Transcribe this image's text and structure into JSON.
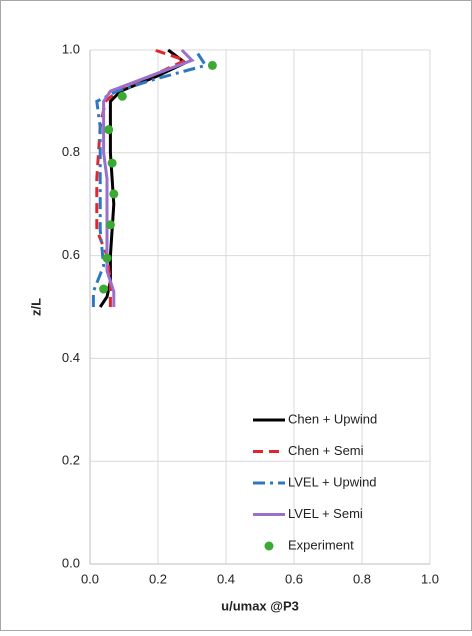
{
  "chart_data": {
    "type": "line",
    "xlabel": "u/umax @P3",
    "ylabel": "z/L",
    "xlim": [
      0,
      1
    ],
    "ylim": [
      0,
      1
    ],
    "xticks": [
      {
        "value": 0,
        "label": "0.0"
      },
      0.2,
      0.4,
      0.6,
      0.8,
      {
        "value": 1,
        "label": "1.0"
      }
    ],
    "yticks": [
      {
        "value": 0,
        "label": "0.0"
      },
      0.2,
      0.4,
      0.6,
      0.8,
      {
        "value": 1,
        "label": "1.0"
      }
    ],
    "grid": true,
    "legend": "lower right",
    "series": [
      {
        "name": "Chen + Upwind",
        "color": "#000000",
        "style": "solid",
        "x": [
          0.03,
          0.05,
          0.06,
          0.06,
          0.065,
          0.07,
          0.065,
          0.06,
          0.06,
          0.06,
          0.09,
          0.2,
          0.28,
          0.23
        ],
        "y": [
          0.5,
          0.52,
          0.55,
          0.6,
          0.65,
          0.7,
          0.75,
          0.8,
          0.85,
          0.9,
          0.92,
          0.95,
          0.975,
          1.0
        ]
      },
      {
        "name": "Chen + Semi",
        "color": "#e0272f",
        "style": "dash",
        "x": [
          0.06,
          0.06,
          0.05,
          0.02,
          0.02,
          0.02,
          0.025,
          0.03,
          0.045,
          0.09,
          0.2,
          0.28,
          0.19
        ],
        "y": [
          0.5,
          0.55,
          0.6,
          0.65,
          0.7,
          0.75,
          0.8,
          0.85,
          0.9,
          0.925,
          0.955,
          0.98,
          1.0
        ]
      },
      {
        "name": "LVEL + Upwind",
        "color": "#2f78bf",
        "style": "dashdot",
        "x": [
          0.01,
          0.01,
          0.04,
          0.03,
          0.03,
          0.03,
          0.03,
          0.03,
          0.02,
          0.08,
          0.2,
          0.34,
          0.31
        ],
        "y": [
          0.5,
          0.53,
          0.58,
          0.65,
          0.7,
          0.75,
          0.8,
          0.85,
          0.9,
          0.92,
          0.945,
          0.97,
          1.0
        ]
      },
      {
        "name": "LVEL + Semi",
        "color": "#9b6fcc",
        "style": "solid",
        "x": [
          0.07,
          0.07,
          0.05,
          0.05,
          0.05,
          0.05,
          0.04,
          0.04,
          0.04,
          0.06,
          0.18,
          0.3,
          0.27
        ],
        "y": [
          0.5,
          0.53,
          0.57,
          0.65,
          0.7,
          0.75,
          0.8,
          0.85,
          0.9,
          0.92,
          0.95,
          0.98,
          1.0
        ]
      },
      {
        "name": "Experiment",
        "color": "#3aaa35",
        "style": "markers",
        "x": [
          0.36,
          0.095,
          0.055,
          0.065,
          0.07,
          0.06,
          0.05,
          0.04
        ],
        "y": [
          0.97,
          0.91,
          0.845,
          0.78,
          0.72,
          0.66,
          0.595,
          0.535
        ]
      }
    ]
  }
}
